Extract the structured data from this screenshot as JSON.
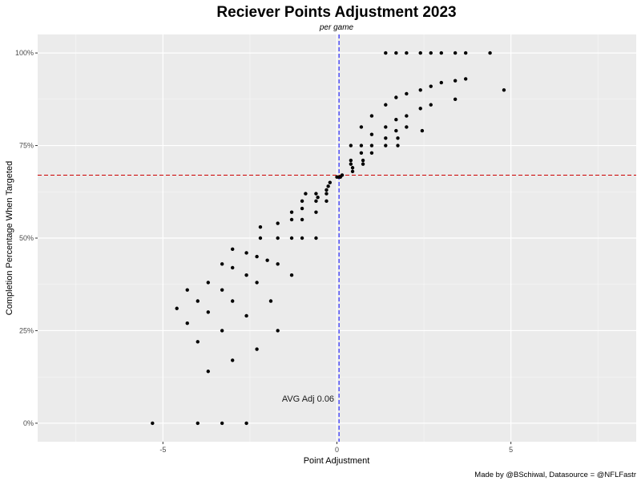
{
  "chart_data": {
    "type": "scatter",
    "title": "Reciever Points Adjustment 2023",
    "subtitle": "per game",
    "xlabel": "Point Adjustment",
    "ylabel": "Completion Percentage When Targeted",
    "caption": "Made by @BSchiwal, Datasource = @NFLFastr",
    "xlim": [
      -8.6,
      8.6
    ],
    "ylim": [
      -0.05,
      1.05
    ],
    "x_ticks": [
      -5,
      0,
      5
    ],
    "x_tick_labels": [
      "-5",
      "0",
      "5"
    ],
    "y_ticks": [
      0,
      0.25,
      0.5,
      0.75,
      1.0
    ],
    "y_tick_labels": [
      "0%",
      "25%",
      "50%",
      "75%",
      "100%"
    ],
    "grid": true,
    "background": "#ebebeb",
    "point_color": "#000000",
    "vline": {
      "x": 0.06,
      "color": "#0000ff",
      "style": "dashed"
    },
    "hline": {
      "y": 0.67,
      "color": "#cc0000",
      "style": "dashed"
    },
    "annotation": {
      "text": "AVG Adj 0.06",
      "x": -0.83,
      "y": 0.067
    },
    "points": [
      {
        "x": -5.3,
        "y": 0.0
      },
      {
        "x": -4.0,
        "y": 0.0
      },
      {
        "x": -3.3,
        "y": 0.0
      },
      {
        "x": -2.6,
        "y": 0.0
      },
      {
        "x": -4.6,
        "y": 0.31
      },
      {
        "x": -4.3,
        "y": 0.36
      },
      {
        "x": -4.3,
        "y": 0.27
      },
      {
        "x": -4.0,
        "y": 0.33
      },
      {
        "x": -4.0,
        "y": 0.22
      },
      {
        "x": -3.7,
        "y": 0.38
      },
      {
        "x": -3.7,
        "y": 0.3
      },
      {
        "x": -3.7,
        "y": 0.14
      },
      {
        "x": -3.3,
        "y": 0.43
      },
      {
        "x": -3.3,
        "y": 0.36
      },
      {
        "x": -3.3,
        "y": 0.25
      },
      {
        "x": -3.0,
        "y": 0.47
      },
      {
        "x": -3.0,
        "y": 0.42
      },
      {
        "x": -3.0,
        "y": 0.33
      },
      {
        "x": -3.0,
        "y": 0.17
      },
      {
        "x": -2.6,
        "y": 0.46
      },
      {
        "x": -2.6,
        "y": 0.4
      },
      {
        "x": -2.6,
        "y": 0.29
      },
      {
        "x": -2.3,
        "y": 0.45
      },
      {
        "x": -2.3,
        "y": 0.38
      },
      {
        "x": -2.3,
        "y": 0.2
      },
      {
        "x": -2.2,
        "y": 0.53
      },
      {
        "x": -2.2,
        "y": 0.5
      },
      {
        "x": -2.0,
        "y": 0.44
      },
      {
        "x": -1.9,
        "y": 0.33
      },
      {
        "x": -1.7,
        "y": 0.54
      },
      {
        "x": -1.7,
        "y": 0.5
      },
      {
        "x": -1.7,
        "y": 0.43
      },
      {
        "x": -1.7,
        "y": 0.25
      },
      {
        "x": -1.3,
        "y": 0.57
      },
      {
        "x": -1.3,
        "y": 0.55
      },
      {
        "x": -1.3,
        "y": 0.5
      },
      {
        "x": -1.3,
        "y": 0.4
      },
      {
        "x": -1.0,
        "y": 0.6
      },
      {
        "x": -1.0,
        "y": 0.58
      },
      {
        "x": -1.0,
        "y": 0.55
      },
      {
        "x": -1.0,
        "y": 0.5
      },
      {
        "x": -0.9,
        "y": 0.62
      },
      {
        "x": -0.6,
        "y": 0.62
      },
      {
        "x": -0.6,
        "y": 0.6
      },
      {
        "x": -0.6,
        "y": 0.57
      },
      {
        "x": -0.6,
        "y": 0.5
      },
      {
        "x": -0.55,
        "y": 0.61
      },
      {
        "x": -0.3,
        "y": 0.63
      },
      {
        "x": -0.3,
        "y": 0.62
      },
      {
        "x": -0.3,
        "y": 0.6
      },
      {
        "x": -0.25,
        "y": 0.64
      },
      {
        "x": -0.2,
        "y": 0.65
      },
      {
        "x": 0.0,
        "y": 0.665
      },
      {
        "x": 0.05,
        "y": 0.665
      },
      {
        "x": 0.1,
        "y": 0.665
      },
      {
        "x": 0.15,
        "y": 0.67
      },
      {
        "x": 0.4,
        "y": 0.75
      },
      {
        "x": 0.4,
        "y": 0.71
      },
      {
        "x": 0.4,
        "y": 0.7
      },
      {
        "x": 0.45,
        "y": 0.69
      },
      {
        "x": 0.45,
        "y": 0.68
      },
      {
        "x": 0.7,
        "y": 0.8
      },
      {
        "x": 0.7,
        "y": 0.75
      },
      {
        "x": 0.7,
        "y": 0.73
      },
      {
        "x": 0.75,
        "y": 0.71
      },
      {
        "x": 0.75,
        "y": 0.7
      },
      {
        "x": 1.0,
        "y": 0.83
      },
      {
        "x": 1.0,
        "y": 0.78
      },
      {
        "x": 1.0,
        "y": 0.75
      },
      {
        "x": 1.0,
        "y": 0.73
      },
      {
        "x": 1.4,
        "y": 1.0
      },
      {
        "x": 1.4,
        "y": 0.86
      },
      {
        "x": 1.4,
        "y": 0.8
      },
      {
        "x": 1.4,
        "y": 0.77
      },
      {
        "x": 1.4,
        "y": 0.75
      },
      {
        "x": 1.7,
        "y": 1.0
      },
      {
        "x": 1.7,
        "y": 0.88
      },
      {
        "x": 1.7,
        "y": 0.82
      },
      {
        "x": 1.7,
        "y": 0.79
      },
      {
        "x": 1.75,
        "y": 0.77
      },
      {
        "x": 1.75,
        "y": 0.75
      },
      {
        "x": 2.0,
        "y": 1.0
      },
      {
        "x": 2.0,
        "y": 0.89
      },
      {
        "x": 2.0,
        "y": 0.83
      },
      {
        "x": 2.0,
        "y": 0.8
      },
      {
        "x": 2.4,
        "y": 1.0
      },
      {
        "x": 2.4,
        "y": 0.9
      },
      {
        "x": 2.4,
        "y": 0.85
      },
      {
        "x": 2.45,
        "y": 0.79
      },
      {
        "x": 2.7,
        "y": 1.0
      },
      {
        "x": 2.7,
        "y": 0.91
      },
      {
        "x": 2.7,
        "y": 0.86
      },
      {
        "x": 3.0,
        "y": 1.0
      },
      {
        "x": 3.0,
        "y": 0.92
      },
      {
        "x": 3.4,
        "y": 1.0
      },
      {
        "x": 3.4,
        "y": 0.925
      },
      {
        "x": 3.4,
        "y": 0.875
      },
      {
        "x": 3.7,
        "y": 1.0
      },
      {
        "x": 3.7,
        "y": 0.93
      },
      {
        "x": 4.4,
        "y": 1.0
      },
      {
        "x": 4.8,
        "y": 0.9
      }
    ]
  }
}
